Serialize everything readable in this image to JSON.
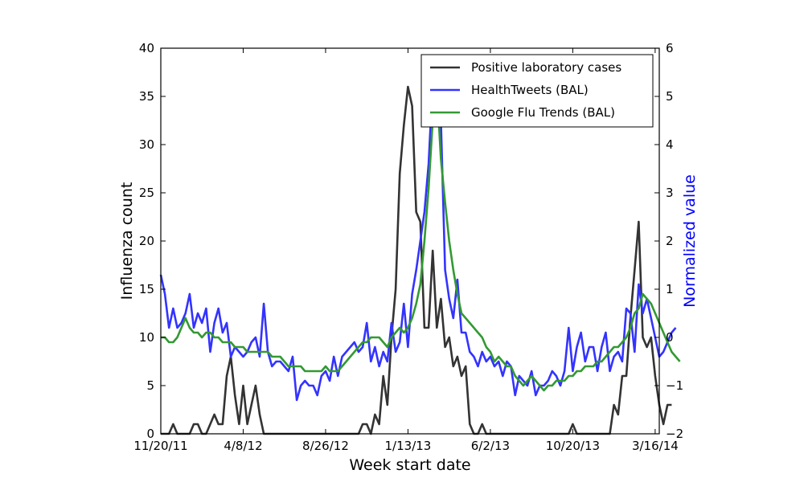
{
  "chart_data": {
    "type": "line",
    "title": "",
    "xlabel": "Week start date",
    "ylabel": "Influenza count",
    "y2label": "Normalized value",
    "y2label_color": "#0000ff",
    "ylim": [
      0,
      40
    ],
    "y2lim": [
      -2,
      6
    ],
    "y_ticks": [
      "0",
      "5",
      "10",
      "15",
      "20",
      "25",
      "30",
      "35",
      "40"
    ],
    "y2_ticks": [
      "−2",
      "−1",
      "0",
      "1",
      "2",
      "3",
      "4",
      "5",
      "6"
    ],
    "x_ticks": [
      "11/20/11",
      "4/8/12",
      "8/26/12",
      "1/13/13",
      "6/2/13",
      "10/20/13",
      "3/16/14"
    ],
    "x_domain_weeks": [
      0,
      121
    ],
    "x_tick_weeks": [
      0,
      20,
      40,
      60,
      80,
      100,
      120
    ],
    "grid": false,
    "legend_position": "top-right",
    "series": [
      {
        "name": "Positive laboratory cases",
        "axis": "left",
        "color": "#333333",
        "values": [
          0,
          0,
          0,
          1,
          0,
          0,
          0,
          0,
          1,
          1,
          0,
          0,
          1,
          2,
          1,
          1,
          6,
          8,
          4,
          1,
          5,
          1,
          3,
          5,
          2,
          0,
          0,
          0,
          0,
          0,
          0,
          0,
          0,
          0,
          0,
          0,
          0,
          0,
          0,
          0,
          0,
          0,
          0,
          0,
          0,
          0,
          0,
          0,
          0,
          1,
          1,
          0,
          2,
          1,
          6,
          3,
          10,
          15,
          27,
          32,
          36,
          34,
          23,
          22,
          11,
          11,
          19,
          11,
          14,
          9,
          10,
          7,
          8,
          6,
          7,
          1,
          0,
          0,
          1,
          0,
          0,
          0,
          0,
          0,
          0,
          0,
          0,
          0,
          0,
          0,
          0,
          0,
          0,
          0,
          0,
          0,
          0,
          0,
          0,
          0,
          1,
          0,
          0,
          0,
          0,
          0,
          0,
          0,
          0,
          0,
          3,
          2,
          6,
          6,
          12,
          17,
          22,
          10,
          9,
          10,
          6,
          3,
          1,
          3,
          3
        ]
      },
      {
        "name": "HealthTweets (BAL)",
        "axis": "right",
        "color": "#3333ff",
        "values": [
          1.3,
          0.9,
          0.2,
          0.6,
          0.2,
          0.3,
          0.5,
          0.9,
          0.2,
          0.5,
          0.3,
          0.6,
          -0.3,
          0.3,
          0.6,
          0.1,
          0.3,
          -0.4,
          -0.2,
          -0.3,
          -0.4,
          -0.3,
          -0.1,
          0.0,
          -0.4,
          0.7,
          -0.3,
          -0.6,
          -0.5,
          -0.5,
          -0.6,
          -0.7,
          -0.4,
          -1.3,
          -1.0,
          -0.9,
          -1.0,
          -1.0,
          -1.2,
          -0.8,
          -0.7,
          -0.9,
          -0.4,
          -0.8,
          -0.4,
          -0.3,
          -0.2,
          -0.1,
          -0.3,
          -0.2,
          0.3,
          -0.5,
          -0.2,
          -0.6,
          -0.3,
          -0.5,
          0.3,
          -0.3,
          -0.1,
          0.7,
          -0.2,
          0.9,
          1.4,
          2.0,
          2.6,
          3.6,
          5.3,
          5.1,
          4.5,
          1.4,
          0.8,
          0.4,
          1.2,
          0.1,
          0.1,
          -0.3,
          -0.4,
          -0.6,
          -0.3,
          -0.5,
          -0.4,
          -0.6,
          -0.5,
          -0.8,
          -0.5,
          -0.6,
          -1.2,
          -0.8,
          -0.9,
          -1.0,
          -0.7,
          -1.2,
          -1.0,
          -1.0,
          -0.9,
          -0.7,
          -0.8,
          -1.0,
          -0.7,
          0.2,
          -0.7,
          -0.2,
          0.1,
          -0.5,
          -0.2,
          -0.2,
          -0.7,
          -0.2,
          0.1,
          -0.7,
          -0.4,
          -0.3,
          -0.5,
          0.6,
          0.5,
          -0.3,
          1.1,
          0.5,
          0.8,
          0.4,
          0.0,
          -0.4,
          -0.3,
          -0.1,
          0.1,
          0.2
        ]
      },
      {
        "name": "Google Flu Trends (BAL)",
        "axis": "right",
        "color": "#339933",
        "values": [
          0.0,
          0.0,
          -0.1,
          -0.1,
          0.0,
          0.2,
          0.4,
          0.2,
          0.1,
          0.1,
          0.0,
          0.1,
          0.1,
          0.0,
          0.0,
          -0.1,
          -0.1,
          -0.1,
          -0.2,
          -0.2,
          -0.2,
          -0.3,
          -0.3,
          -0.3,
          -0.3,
          -0.3,
          -0.3,
          -0.4,
          -0.4,
          -0.4,
          -0.5,
          -0.6,
          -0.6,
          -0.6,
          -0.6,
          -0.7,
          -0.7,
          -0.7,
          -0.7,
          -0.7,
          -0.6,
          -0.7,
          -0.7,
          -0.7,
          -0.6,
          -0.5,
          -0.4,
          -0.3,
          -0.2,
          -0.1,
          -0.1,
          0.0,
          0.0,
          0.0,
          -0.1,
          -0.2,
          0.0,
          0.1,
          0.2,
          0.1,
          0.2,
          0.4,
          0.7,
          1.1,
          2.0,
          3.1,
          4.5,
          5.2,
          3.7,
          2.8,
          2.0,
          1.4,
          0.9,
          0.5,
          0.4,
          0.3,
          0.2,
          0.1,
          0.0,
          -0.2,
          -0.3,
          -0.5,
          -0.4,
          -0.5,
          -0.6,
          -0.6,
          -0.8,
          -0.9,
          -1.0,
          -0.9,
          -0.8,
          -0.9,
          -1.0,
          -1.1,
          -1.0,
          -1.0,
          -0.9,
          -0.9,
          -0.9,
          -0.8,
          -0.8,
          -0.7,
          -0.7,
          -0.6,
          -0.6,
          -0.6,
          -0.5,
          -0.5,
          -0.4,
          -0.3,
          -0.2,
          -0.2,
          -0.1,
          0.0,
          0.2,
          0.5,
          0.6,
          0.9,
          0.8,
          0.7,
          0.5,
          0.3,
          0.1,
          -0.1,
          -0.3,
          -0.4,
          -0.5
        ]
      }
    ]
  }
}
